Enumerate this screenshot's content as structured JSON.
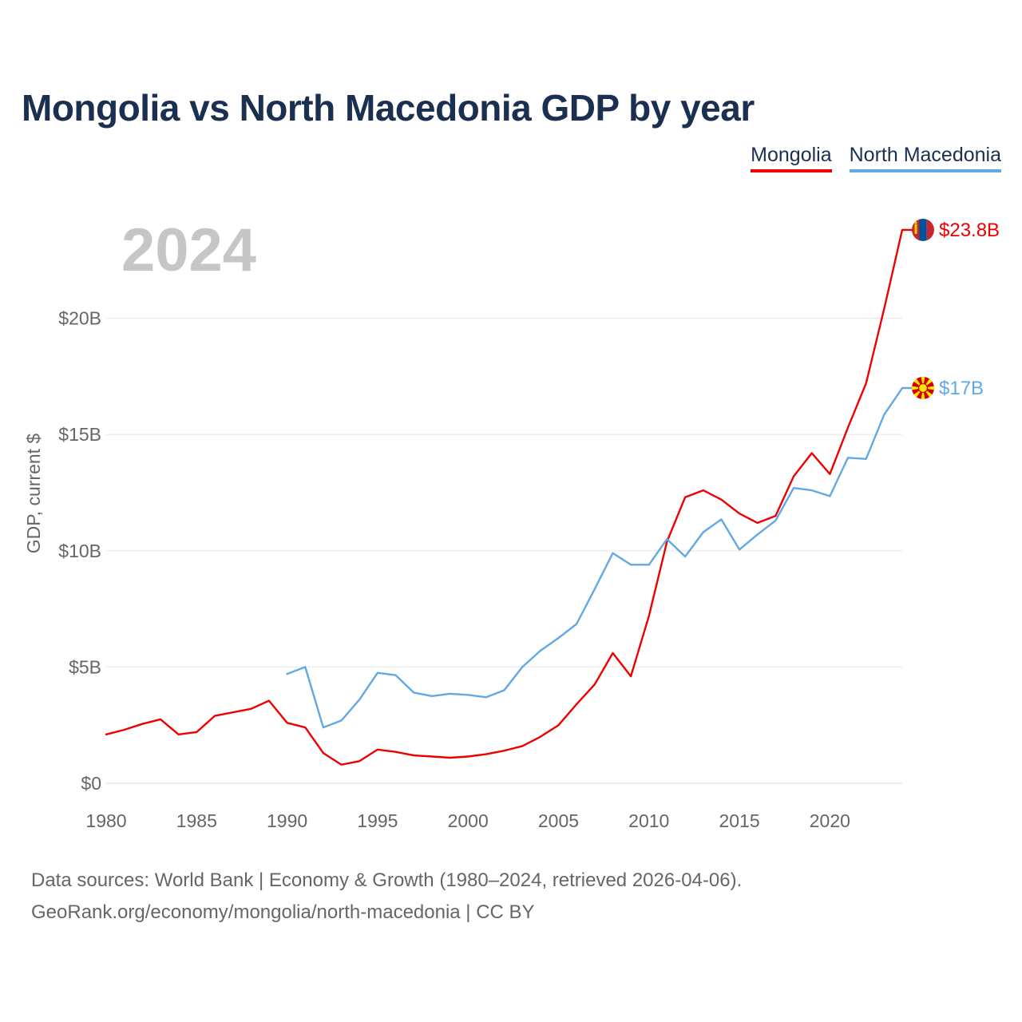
{
  "title": "Mongolia vs North Macedonia GDP by year",
  "legend": {
    "mongolia": "Mongolia",
    "north_macedonia": "North Macedonia"
  },
  "colors": {
    "mongolia": "#ee0000",
    "north_macedonia": "#62a8e5",
    "title": "#1b3050",
    "year_watermark": "#c6c6c6",
    "axis_text": "#666666",
    "grid": "#e6e6e6"
  },
  "year_label": "2024",
  "sources": {
    "line1": "Data sources: World Bank | Economy & Growth (1980–2024, retrieved 2026-04-06).",
    "line2": "GeoRank.org/economy/mongolia/north-macedonia | CC BY"
  },
  "chart_data": {
    "type": "line",
    "title": "Mongolia vs North Macedonia GDP by year",
    "xlabel": "",
    "ylabel": "GDP, current $",
    "xlim": [
      1980,
      2024
    ],
    "ylim": [
      0,
      25
    ],
    "xticks": [
      1980,
      1985,
      1990,
      1995,
      2000,
      2005,
      2010,
      2015,
      2020
    ],
    "xtick_labels": [
      "1980",
      "1985",
      "1990",
      "1995",
      "2000",
      "2005",
      "2010",
      "2015",
      "2020"
    ],
    "yticks": [
      0,
      5,
      10,
      15,
      20
    ],
    "ytick_labels": [
      "$0",
      "$5B",
      "$10B",
      "$15B",
      "$20B"
    ],
    "grid": true,
    "legend_position": "top-right",
    "series": [
      {
        "name": "Mongolia",
        "color": "#ee0000",
        "end_label": "$23.8B",
        "flag_icon": "mongolia-flag-icon",
        "x": [
          1980,
          1981,
          1982,
          1983,
          1984,
          1985,
          1986,
          1987,
          1988,
          1989,
          1990,
          1991,
          1992,
          1993,
          1994,
          1995,
          1996,
          1997,
          1998,
          1999,
          2000,
          2001,
          2002,
          2003,
          2004,
          2005,
          2006,
          2007,
          2008,
          2009,
          2010,
          2011,
          2012,
          2013,
          2014,
          2015,
          2016,
          2017,
          2018,
          2019,
          2020,
          2021,
          2022,
          2023,
          2024
        ],
        "values": [
          2.1,
          2.3,
          2.55,
          2.75,
          2.1,
          2.2,
          2.9,
          3.05,
          3.2,
          3.55,
          2.6,
          2.4,
          1.3,
          0.8,
          0.95,
          1.45,
          1.35,
          1.2,
          1.15,
          1.1,
          1.15,
          1.25,
          1.4,
          1.6,
          2.0,
          2.5,
          3.4,
          4.25,
          5.6,
          4.6,
          7.2,
          10.4,
          12.3,
          12.6,
          12.2,
          11.6,
          11.2,
          11.5,
          13.2,
          14.2,
          13.3,
          15.3,
          17.2,
          20.4,
          23.8
        ]
      },
      {
        "name": "North Macedonia",
        "color": "#62a8e5",
        "end_label": "$17B",
        "flag_icon": "north-macedonia-flag-icon",
        "x": [
          1990,
          1991,
          1992,
          1993,
          1994,
          1995,
          1996,
          1997,
          1998,
          1999,
          2000,
          2001,
          2002,
          2003,
          2004,
          2005,
          2006,
          2007,
          2008,
          2009,
          2010,
          2011,
          2012,
          2013,
          2014,
          2015,
          2016,
          2017,
          2018,
          2019,
          2020,
          2021,
          2022,
          2023,
          2024
        ],
        "values": [
          4.7,
          5.0,
          2.4,
          2.7,
          3.6,
          4.75,
          4.65,
          3.9,
          3.75,
          3.85,
          3.8,
          3.7,
          4.0,
          5.0,
          5.7,
          6.25,
          6.85,
          8.35,
          9.9,
          9.4,
          9.4,
          10.5,
          9.75,
          10.8,
          11.35,
          10.05,
          10.7,
          11.3,
          12.7,
          12.6,
          12.35,
          14.0,
          13.95,
          15.85,
          17.0
        ]
      }
    ]
  }
}
